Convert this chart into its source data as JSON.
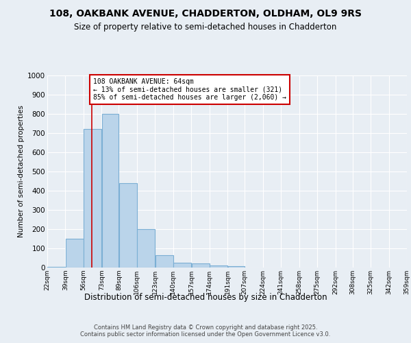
{
  "title1": "108, OAKBANK AVENUE, CHADDERTON, OLDHAM, OL9 9RS",
  "title2": "Size of property relative to semi-detached houses in Chadderton",
  "xlabel": "Distribution of semi-detached houses by size in Chadderton",
  "ylabel": "Number of semi-detached properties",
  "footnote": "Contains HM Land Registry data © Crown copyright and database right 2025.\nContains public sector information licensed under the Open Government Licence v3.0.",
  "bin_edges": [
    22,
    39,
    56,
    73,
    89,
    106,
    123,
    140,
    157,
    174,
    191,
    207,
    224,
    241,
    258,
    275,
    292,
    308,
    325,
    342,
    359
  ],
  "bar_heights": [
    5,
    150,
    720,
    800,
    440,
    200,
    65,
    25,
    20,
    12,
    8,
    0,
    0,
    0,
    0,
    0,
    0,
    0,
    0,
    0
  ],
  "bar_color": "#bad4ea",
  "bar_edge_color": "#7bafd4",
  "subject_size": 64,
  "subject_line_color": "#cc0000",
  "annotation_text": "108 OAKBANK AVENUE: 64sqm\n← 13% of semi-detached houses are smaller (321)\n85% of semi-detached houses are larger (2,060) →",
  "annotation_box_color": "#ffffff",
  "annotation_box_edge": "#cc0000",
  "ylim": [
    0,
    1000
  ],
  "yticks": [
    0,
    100,
    200,
    300,
    400,
    500,
    600,
    700,
    800,
    900,
    1000
  ],
  "background_color": "#e8eef4",
  "plot_bg_color": "#e8eef4",
  "grid_color": "#ffffff"
}
